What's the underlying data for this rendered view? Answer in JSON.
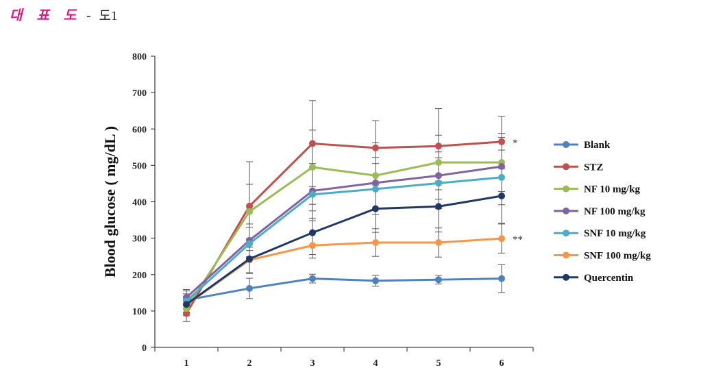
{
  "header": {
    "label": "대 표 도",
    "separator": "-",
    "figure": "도1"
  },
  "chart_data": {
    "type": "line",
    "title": "",
    "xlabel": "",
    "ylabel": "Blood glucose ( mg/dL )",
    "categories": [
      "1",
      "2",
      "3",
      "4",
      "5",
      "6"
    ],
    "ylim": [
      0,
      800
    ],
    "yticks": [
      "0",
      "100",
      "200",
      "300",
      "400",
      "500",
      "600",
      "700",
      "800"
    ],
    "grid": false,
    "legend_position": "right",
    "series": [
      {
        "name": "Blank",
        "color": "#4f81bd",
        "values": [
          130,
          162,
          189,
          183,
          186,
          189
        ],
        "errors": [
          25,
          28,
          12,
          15,
          12,
          38
        ]
      },
      {
        "name": "STZ",
        "color": "#c0504d",
        "values": [
          93,
          388,
          560,
          548,
          553,
          565
        ],
        "errors": [
          22,
          122,
          118,
          75,
          103,
          70
        ]
      },
      {
        "name": "NF 10 mg/kg",
        "color": "#9bbb59",
        "values": [
          107,
          373,
          495,
          472,
          508,
          508
        ],
        "errors": [
          20,
          75,
          102,
          90,
          75,
          80
        ]
      },
      {
        "name": "NF 100 mg/kg",
        "color": "#8064a2",
        "values": [
          137,
          294,
          430,
          452,
          472,
          497
        ],
        "errors": [
          22,
          45,
          75,
          70,
          65,
          80
        ]
      },
      {
        "name": "SNF 10 mg/kg",
        "color": "#4bacc6",
        "values": [
          127,
          285,
          420,
          435,
          451,
          467
        ],
        "errors": [
          20,
          45,
          72,
          70,
          70,
          75
        ]
      },
      {
        "name": "SNF 100 mg/kg",
        "color": "#f79646",
        "values": [
          117,
          240,
          280,
          288,
          288,
          299
        ],
        "errors": [
          20,
          35,
          35,
          38,
          40,
          40
        ]
      },
      {
        "name": "Quercentin",
        "color": "#1f3864",
        "values": [
          118,
          243,
          315,
          381,
          387,
          416
        ],
        "errors": [
          22,
          40,
          60,
          65,
          70,
          75
        ]
      }
    ],
    "annotations": [
      {
        "text": "*",
        "series": "STZ"
      },
      {
        "text": "**",
        "series": "SNF 100 mg/kg"
      }
    ]
  }
}
